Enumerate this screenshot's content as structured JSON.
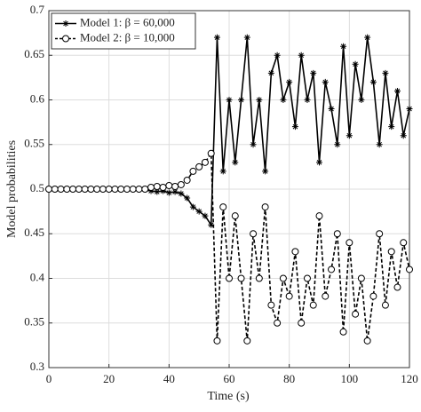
{
  "chart_data": {
    "type": "line",
    "xlabel": "Time (s)",
    "ylabel": "Model probabilities",
    "x": [
      0,
      2,
      4,
      6,
      8,
      10,
      12,
      14,
      16,
      18,
      20,
      22,
      24,
      26,
      28,
      30,
      32,
      34,
      36,
      38,
      40,
      42,
      44,
      46,
      48,
      50,
      52,
      54,
      56,
      58,
      60,
      62,
      64,
      66,
      68,
      70,
      72,
      74,
      76,
      78,
      80,
      82,
      84,
      86,
      88,
      90,
      92,
      94,
      96,
      98,
      100,
      102,
      104,
      106,
      108,
      110,
      112,
      114,
      116,
      118,
      120
    ],
    "series": [
      {
        "name": "Model 1:  β = 60,000",
        "color": "#000000",
        "dash": false,
        "marker": "asterisk",
        "values": [
          0.5,
          0.5,
          0.5,
          0.5,
          0.5,
          0.5,
          0.5,
          0.5,
          0.5,
          0.5,
          0.5,
          0.5,
          0.5,
          0.5,
          0.5,
          0.5,
          0.5,
          0.498,
          0.497,
          0.498,
          0.496,
          0.497,
          0.495,
          0.49,
          0.48,
          0.475,
          0.47,
          0.46,
          0.67,
          0.52,
          0.6,
          0.53,
          0.6,
          0.67,
          0.55,
          0.6,
          0.52,
          0.63,
          0.65,
          0.6,
          0.62,
          0.57,
          0.65,
          0.6,
          0.63,
          0.53,
          0.62,
          0.59,
          0.55,
          0.66,
          0.56,
          0.64,
          0.6,
          0.67,
          0.62,
          0.55,
          0.63,
          0.57,
          0.61,
          0.56,
          0.59
        ]
      },
      {
        "name": "Model 2:  β = 10,000",
        "color": "#000000",
        "dash": true,
        "marker": "circle",
        "values": [
          0.5,
          0.5,
          0.5,
          0.5,
          0.5,
          0.5,
          0.5,
          0.5,
          0.5,
          0.5,
          0.5,
          0.5,
          0.5,
          0.5,
          0.5,
          0.5,
          0.5,
          0.502,
          0.503,
          0.502,
          0.504,
          0.503,
          0.505,
          0.51,
          0.52,
          0.525,
          0.53,
          0.54,
          0.33,
          0.48,
          0.4,
          0.47,
          0.4,
          0.33,
          0.45,
          0.4,
          0.48,
          0.37,
          0.35,
          0.4,
          0.38,
          0.43,
          0.35,
          0.4,
          0.37,
          0.47,
          0.38,
          0.41,
          0.45,
          0.34,
          0.44,
          0.36,
          0.4,
          0.33,
          0.38,
          0.45,
          0.37,
          0.43,
          0.39,
          0.44,
          0.41
        ]
      }
    ],
    "xlim": [
      0,
      120
    ],
    "xticks": [
      0,
      20,
      40,
      60,
      80,
      100,
      120
    ],
    "ylim": [
      0.3,
      0.7
    ],
    "yticks": [
      0.3,
      0.35,
      0.4,
      0.45,
      0.5,
      0.55,
      0.6,
      0.65,
      0.7
    ],
    "grid": true,
    "legend": "upper left"
  }
}
